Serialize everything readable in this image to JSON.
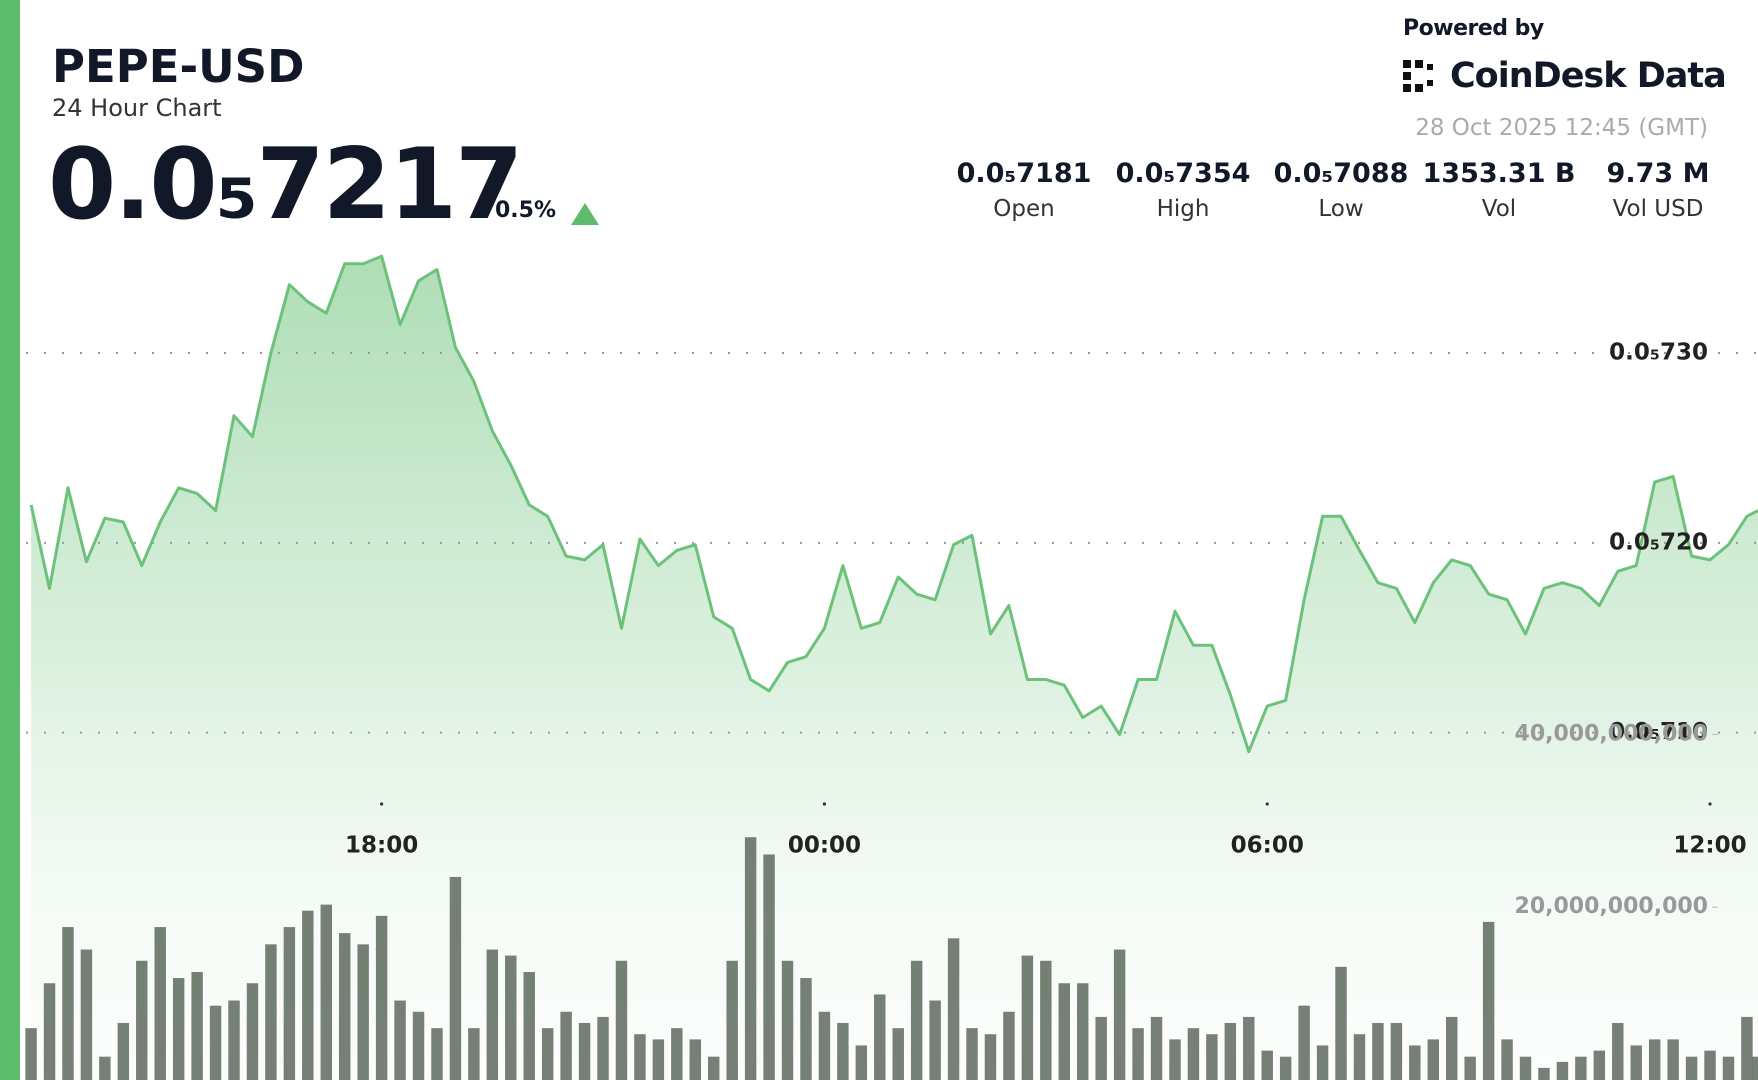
{
  "header": {
    "price": "0.0₅7217",
    "change": "0.5%",
    "stats": [
      {
        "value": "0.0₅7181",
        "label": "Open"
      },
      {
        "value": "0.0₅7354",
        "label": "High"
      },
      {
        "value": "0.0₅7088",
        "label": "Low"
      },
      {
        "value": "1353.31 B",
        "label": "Vol"
      },
      {
        "value": "9.73 M",
        "label": "Vol USD"
      }
    ],
    "powered_by": "Powered by",
    "brand": "CoinDesk Data",
    "timestamp": "28 Oct 2025 12:45 (GMT)"
  },
  "chart_data": {
    "type": "line",
    "title": "PEPE-USD",
    "subtitle": "24 Hour Chart",
    "x": [
      13.25,
      13.5,
      13.75,
      14,
      14.25,
      14.5,
      14.75,
      15,
      15.25,
      15.5,
      15.75,
      16,
      16.25,
      16.5,
      16.75,
      17,
      17.25,
      17.5,
      17.75,
      18,
      18.25,
      18.5,
      18.75,
      19,
      19.25,
      19.5,
      19.75,
      20,
      20.25,
      20.5,
      20.75,
      21,
      21.25,
      21.5,
      21.75,
      22,
      22.25,
      22.5,
      22.75,
      23,
      23.25,
      23.5,
      23.75,
      24,
      24.25,
      24.5,
      24.75,
      25,
      25.25,
      25.5,
      25.75,
      26,
      26.25,
      26.5,
      26.75,
      27,
      27.25,
      27.5,
      27.75,
      28,
      28.25,
      28.5,
      28.75,
      29,
      29.25,
      29.5,
      29.75,
      30,
      30.25,
      30.5,
      30.75,
      31,
      31.25,
      31.5,
      31.75,
      32,
      32.25,
      32.5,
      32.75,
      33,
      33.25,
      33.5,
      33.75,
      34,
      34.25,
      34.5,
      34.75,
      35,
      35.25,
      35.5,
      35.75,
      36,
      36.25,
      36.5,
      36.65
    ],
    "series": [
      {
        "color": "#6cc27a",
        "values": [
          7.22e-06,
          7.176e-06,
          7.229e-06,
          7.19e-06,
          7.213e-06,
          7.211e-06,
          7.188e-06,
          7.211e-06,
          7.229e-06,
          7.226e-06,
          7.217e-06,
          7.267e-06,
          7.256e-06,
          7.3e-06,
          7.336e-06,
          7.327e-06,
          7.321e-06,
          7.347e-06,
          7.347e-06,
          7.351e-06,
          7.315e-06,
          7.338e-06,
          7.344e-06,
          7.303e-06,
          7.285e-06,
          7.259e-06,
          7.241e-06,
          7.22e-06,
          7.214e-06,
          7.193e-06,
          7.191e-06,
          7.199e-06,
          7.155e-06,
          7.202e-06,
          7.188e-06,
          7.196e-06,
          7.199e-06,
          7.161e-06,
          7.155e-06,
          7.128e-06,
          7.122e-06,
          7.137e-06,
          7.14e-06,
          7.155e-06,
          7.188e-06,
          7.155e-06,
          7.158e-06,
          7.182e-06,
          7.173e-06,
          7.17e-06,
          7.199e-06,
          7.204e-06,
          7.152e-06,
          7.167e-06,
          7.128e-06,
          7.128e-06,
          7.125e-06,
          7.108e-06,
          7.114e-06,
          7.099e-06,
          7.128e-06,
          7.128e-06,
          7.164e-06,
          7.146e-06,
          7.146e-06,
          7.12e-06,
          7.09e-06,
          7.114e-06,
          7.117e-06,
          7.17e-06,
          7.214e-06,
          7.214e-06,
          7.196e-06,
          7.179e-06,
          7.176e-06,
          7.158e-06,
          7.179e-06,
          7.191e-06,
          7.188e-06,
          7.173e-06,
          7.17e-06,
          7.152e-06,
          7.176e-06,
          7.179e-06,
          7.176e-06,
          7.167e-06,
          7.185e-06,
          7.188e-06,
          7.232e-06,
          7.235e-06,
          7.193e-06,
          7.191e-06,
          7.199e-06,
          7.214e-06,
          7.217e-06
        ]
      },
      {
        "type": "bar",
        "axis": "y2",
        "color": "#5e6a5e",
        "values": [
          6000000000.0,
          11200000000.0,
          17700000000.0,
          15100000000.0,
          2700000000.0,
          6600000000.0,
          13800000000.0,
          17700000000.0,
          11800000000.0,
          12500000000.0,
          8600000000.0,
          9200000000.0,
          11200000000.0,
          15700000000.0,
          17700000000.0,
          19600000000.0,
          20300000000.0,
          17000000000.0,
          15700000000.0,
          19000000000.0,
          9200000000.0,
          7900000000.0,
          6000000000.0,
          23500000000.0,
          6000000000.0,
          15100000000.0,
          14400000000.0,
          12500000000.0,
          6000000000.0,
          7900000000.0,
          6600000000.0,
          7300000000.0,
          13800000000.0,
          5300000000.0,
          4700000000.0,
          6000000000.0,
          4700000000.0,
          2700000000.0,
          13800000000.0,
          28100000000.0,
          26100000000.0,
          13800000000.0,
          11800000000.0,
          7900000000.0,
          6600000000.0,
          4000000000.0,
          9900000000.0,
          6000000000.0,
          13800000000.0,
          9200000000.0,
          16400000000.0,
          6000000000.0,
          5300000000.0,
          7900000000.0,
          14400000000.0,
          13800000000.0,
          11200000000.0,
          11200000000.0,
          7300000000.0,
          15100000000.0,
          6000000000.0,
          7300000000.0,
          4700000000.0,
          6000000000.0,
          5300000000.0,
          6600000000.0,
          7300000000.0,
          3400000000.0,
          2700000000.0,
          8600000000.0,
          4000000000.0,
          13100000000.0,
          5300000000.0,
          6600000000.0,
          6600000000.0,
          4000000000.0,
          4700000000.0,
          7300000000.0,
          2700000000.0,
          18300000000.0,
          4700000000.0,
          2700000000.0,
          1400000000.0,
          2100000000.0,
          2700000000.0,
          3400000000.0,
          6600000000.0,
          4000000000.0,
          4700000000.0,
          4700000000.0,
          2700000000.0,
          3400000000.0,
          2700000000.0,
          7300000000.0,
          2700000000.0
        ]
      }
    ],
    "xlim": [
      13.1,
      36.65
    ],
    "xticks": [
      {
        "value": 18,
        "label": "18:00"
      },
      {
        "value": 24,
        "label": "00:00"
      },
      {
        "value": 30,
        "label": "06:00"
      },
      {
        "value": 36,
        "label": "12:00"
      }
    ],
    "ylim": [
      6.917e-06,
      7.486e-06
    ],
    "yticks": [
      {
        "value": 7.1e-06,
        "label": "0.0₅710"
      },
      {
        "value": 7.2e-06,
        "label": "0.0₅720"
      },
      {
        "value": 7.3e-06,
        "label": "0.0₅730"
      }
    ],
    "y2lim": [
      0,
      125000000000
    ],
    "y2ticks": [
      {
        "value": 20000000000,
        "label": "20,000,000,000"
      },
      {
        "value": 40000000000,
        "label": "40,000,000,000"
      }
    ],
    "grid": true
  }
}
